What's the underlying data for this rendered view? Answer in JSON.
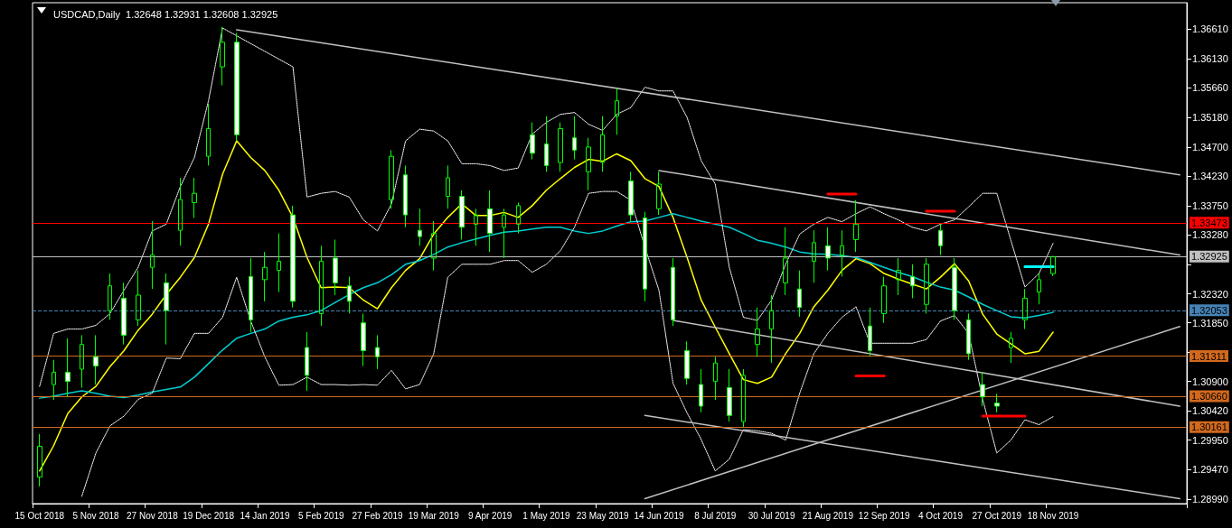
{
  "chart_data": {
    "type": "candlestick",
    "title": "USDCAD,Daily  1.32648 1.32931 1.32608 1.32925",
    "color": "#00ff00",
    "categories": [
      "15 Oct 2018",
      null,
      null,
      null,
      "5 Nov 2018",
      null,
      null,
      null,
      "27 Nov 2018",
      null,
      null,
      null,
      "19 Dec 2018",
      null,
      null,
      null,
      "14 Jan 2019",
      null,
      null,
      null,
      "5 Feb 2019",
      null,
      null,
      null,
      "27 Feb 2019",
      null,
      null,
      null,
      "19 Mar 2019",
      null,
      null,
      null,
      "9 Apr 2019",
      null,
      null,
      null,
      "1 May 2019",
      null,
      null,
      null,
      "23 May 2019",
      null,
      null,
      null,
      "14 Jun 2019",
      null,
      null,
      null,
      "8 Jul 2019",
      null,
      null,
      null,
      "30 Jul 2019",
      null,
      null,
      null,
      "21 Aug 2019",
      null,
      null,
      null,
      "12 Sep 2019",
      null,
      null,
      null,
      "4 Oct 2019",
      null,
      null,
      null,
      "27 Oct 2019",
      null,
      null,
      null,
      "18 Nov 2019",
      null,
      null,
      null,
      null,
      null,
      null,
      null,
      null,
      null
    ],
    "ohlc": [
      [
        1.2935,
        1.3005,
        1.292,
        1.2985
      ],
      [
        1.3085,
        1.3125,
        1.306,
        1.3105
      ],
      [
        1.3105,
        1.316,
        1.3065,
        1.309
      ],
      [
        1.311,
        1.3165,
        1.308,
        1.315
      ],
      [
        1.313,
        1.3165,
        1.3085,
        1.3115
      ],
      [
        1.3205,
        1.3265,
        1.319,
        1.3245
      ],
      [
        1.3225,
        1.325,
        1.315,
        1.3165
      ],
      [
        1.319,
        1.327,
        1.318,
        1.323
      ],
      [
        1.3275,
        1.335,
        1.324,
        1.3295
      ],
      [
        1.325,
        1.3265,
        1.315,
        1.3205
      ],
      [
        1.3335,
        1.342,
        1.331,
        1.3385
      ],
      [
        1.338,
        1.342,
        1.3355,
        1.3395
      ],
      [
        1.3455,
        1.354,
        1.344,
        1.35
      ],
      [
        1.36,
        1.3665,
        1.357,
        1.364
      ],
      [
        1.364,
        1.3655,
        1.348,
        1.349
      ],
      [
        1.326,
        1.329,
        1.317,
        1.319
      ],
      [
        1.3255,
        1.33,
        1.322,
        1.3275
      ],
      [
        1.327,
        1.333,
        1.3235,
        1.3285
      ],
      [
        1.336,
        1.3375,
        1.321,
        1.322
      ],
      [
        1.3145,
        1.317,
        1.3075,
        1.31
      ],
      [
        1.32,
        1.331,
        1.318,
        1.3285
      ],
      [
        1.329,
        1.332,
        1.323,
        1.325
      ],
      [
        1.3245,
        1.326,
        1.32,
        1.322
      ],
      [
        1.3185,
        1.32,
        1.3115,
        1.314
      ],
      [
        1.3145,
        1.3165,
        1.311,
        1.313
      ],
      [
        1.3385,
        1.3465,
        1.337,
        1.3455
      ],
      [
        1.3425,
        1.344,
        1.334,
        1.336
      ],
      [
        1.3335,
        1.337,
        1.331,
        1.3325
      ],
      [
        1.329,
        1.335,
        1.327,
        1.333
      ],
      [
        1.339,
        1.344,
        1.337,
        1.342
      ],
      [
        1.339,
        1.34,
        1.332,
        1.334
      ],
      [
        1.3345,
        1.337,
        1.331,
        1.336
      ],
      [
        1.337,
        1.34,
        1.33,
        1.333
      ],
      [
        1.334,
        1.337,
        1.329,
        1.336
      ],
      [
        1.3345,
        1.338,
        1.333,
        1.3375
      ],
      [
        1.349,
        1.351,
        1.345,
        1.346
      ],
      [
        1.3475,
        1.352,
        1.343,
        1.344
      ],
      [
        1.3445,
        1.351,
        1.343,
        1.35
      ],
      [
        1.3485,
        1.352,
        1.345,
        1.3465
      ],
      [
        1.343,
        1.3485,
        1.34,
        1.347
      ],
      [
        1.3445,
        1.352,
        1.343,
        1.349
      ],
      [
        1.352,
        1.3565,
        1.349,
        1.3545
      ],
      [
        1.3415,
        1.343,
        1.335,
        1.336
      ],
      [
        1.3355,
        1.3365,
        1.322,
        1.324
      ],
      [
        1.337,
        1.343,
        1.336,
        1.341
      ],
      [
        1.3275,
        1.329,
        1.318,
        1.319
      ],
      [
        1.314,
        1.3155,
        1.3085,
        1.3095
      ],
      [
        1.3085,
        1.311,
        1.304,
        1.305
      ],
      [
        1.309,
        1.313,
        1.306,
        1.312
      ],
      [
        1.308,
        1.311,
        1.3025,
        1.3035
      ],
      [
        1.3025,
        1.311,
        1.3016,
        1.31
      ],
      [
        1.315,
        1.321,
        1.313,
        1.3175
      ],
      [
        1.3175,
        1.323,
        1.312,
        1.3205
      ],
      [
        1.325,
        1.334,
        1.323,
        1.329
      ],
      [
        1.324,
        1.327,
        1.3195,
        1.321
      ],
      [
        1.3285,
        1.3335,
        1.325,
        1.3315
      ],
      [
        1.331,
        1.334,
        1.327,
        1.329
      ],
      [
        1.3295,
        1.3335,
        1.326,
        1.331
      ],
      [
        1.332,
        1.3384,
        1.33,
        1.3345
      ],
      [
        1.318,
        1.321,
        1.313,
        1.314
      ],
      [
        1.32,
        1.326,
        1.3185,
        1.3245
      ],
      [
        1.3255,
        1.329,
        1.323,
        1.327
      ],
      [
        1.326,
        1.328,
        1.3225,
        1.3245
      ],
      [
        1.3215,
        1.329,
        1.32,
        1.328
      ],
      [
        1.3335,
        1.3345,
        1.3295,
        1.331
      ],
      [
        1.3275,
        1.329,
        1.319,
        1.3205
      ],
      [
        1.319,
        1.32,
        1.3125,
        1.3135
      ],
      [
        1.3085,
        1.3105,
        1.305,
        1.3065
      ],
      [
        1.3055,
        1.307,
        1.304,
        1.305
      ],
      [
        1.3145,
        1.317,
        1.312,
        1.316
      ],
      [
        1.319,
        1.324,
        1.3175,
        1.3225
      ],
      [
        1.3235,
        1.3265,
        1.3215,
        1.3255
      ],
      [
        1.32648,
        1.32931,
        1.32608,
        1.32925
      ],
      null,
      null,
      null,
      null,
      null,
      null,
      null,
      null,
      null
    ],
    "series": [
      {
        "type": "line",
        "color": "#ffff00",
        "values": [
          1.2945,
          1.2986,
          1.3038,
          1.3065,
          1.3082,
          1.3114,
          1.314,
          1.3173,
          1.3199,
          1.3231,
          1.3259,
          1.3291,
          1.3345,
          1.3426,
          1.348,
          1.3453,
          1.3432,
          1.34,
          1.3356,
          1.3291,
          1.3242,
          1.3243,
          1.3242,
          1.3222,
          1.3208,
          1.3242,
          1.327,
          1.3289,
          1.3329,
          1.3356,
          1.3378,
          1.3359,
          1.3359,
          1.3364,
          1.3356,
          1.3375,
          1.34,
          1.3419,
          1.3437,
          1.345,
          1.3447,
          1.3459,
          1.3448,
          1.3419,
          1.3406,
          1.3356,
          1.3291,
          1.3222,
          1.3178,
          1.3135,
          1.3093,
          1.3087,
          1.3097,
          1.3135,
          1.3168,
          1.3211,
          1.3238,
          1.327,
          1.3289,
          1.3281,
          1.3265,
          1.3256,
          1.3248,
          1.324,
          1.3259,
          1.3281,
          1.3253,
          1.3199,
          1.3167,
          1.3151,
          1.3135,
          1.3139,
          1.317,
          null,
          null,
          null,
          null,
          null,
          null,
          null,
          null,
          null
        ]
      },
      {
        "type": "line",
        "color": "#00ced1",
        "values": [
          1.3063,
          1.3066,
          1.3071,
          1.3075,
          1.3071,
          1.3066,
          1.3064,
          1.3068,
          1.3073,
          1.3077,
          1.3081,
          1.3097,
          1.3119,
          1.3141,
          1.316,
          1.3168,
          1.3175,
          1.3188,
          1.3194,
          1.3198,
          1.3205,
          1.3218,
          1.3231,
          1.3242,
          1.325,
          1.3263,
          1.328,
          1.3286,
          1.3296,
          1.3308,
          1.3315,
          1.3321,
          1.3327,
          1.3332,
          1.3334,
          1.3337,
          1.334,
          1.334,
          1.3334,
          1.333,
          1.3334,
          1.3342,
          1.3349,
          1.335,
          1.3356,
          1.3362,
          1.3356,
          1.335,
          1.3345,
          1.334,
          1.333,
          1.3319,
          1.3314,
          1.3308,
          1.33,
          1.3297,
          1.3296,
          1.3294,
          1.3291,
          1.3283,
          1.3275,
          1.3267,
          1.326,
          1.3251,
          1.3243,
          1.3238,
          1.3227,
          1.3215,
          1.3205,
          1.3195,
          1.3193,
          1.3197,
          1.3202,
          null,
          null,
          null,
          null,
          null,
          null,
          null,
          null,
          null
        ]
      },
      {
        "type": "line",
        "color": "#ffffff",
        "line_style": "dotted",
        "values": [
          1.3082,
          1.3168,
          1.3175,
          1.3175,
          1.3181,
          1.32,
          1.3238,
          1.3275,
          1.3334,
          1.3345,
          1.3406,
          1.3453,
          1.3545,
          1.3663,
          null,
          null,
          null,
          null,
          1.36,
          1.3389,
          1.3395,
          1.3398,
          1.3389,
          1.3352,
          1.3334,
          1.3378,
          1.348,
          1.3499,
          1.3496,
          1.348,
          1.3443,
          1.3443,
          1.344,
          1.3432,
          1.3436,
          1.3491,
          1.351,
          1.3523,
          1.3526,
          1.3507,
          1.3497,
          1.3523,
          1.3534,
          1.3567,
          1.3561,
          1.3561,
          1.3518,
          1.3448,
          1.341,
          1.3275,
          1.3194,
          1.3189,
          1.3222,
          1.328,
          1.3329,
          1.3345,
          1.3356,
          1.3349,
          1.3362,
          1.3373,
          1.3362,
          1.3352,
          1.334,
          1.3334,
          1.3345,
          1.3352,
          1.3373,
          1.3395,
          1.3395,
          1.3319,
          1.3243,
          1.3265,
          1.3314,
          null,
          null,
          null,
          null,
          null,
          null,
          null,
          null,
          null
        ]
      },
      {
        "type": "line",
        "color": "#ffffff",
        "line_style": "dotted",
        "values": [
          null,
          null,
          null,
          1.2904,
          1.2974,
          1.3018,
          1.3034,
          1.3061,
          1.3071,
          1.3128,
          1.3127,
          1.3168,
          1.3168,
          1.3194,
          1.3259,
          1.3188,
          1.313,
          1.3084,
          1.3085,
          1.3097,
          1.3085,
          1.3085,
          1.3084,
          1.3085,
          1.3084,
          1.3108,
          1.3078,
          1.3085,
          1.3135,
          1.3259,
          1.328,
          1.328,
          1.328,
          1.3286,
          1.3286,
          1.3267,
          1.328,
          1.3302,
          1.334,
          1.3395,
          1.3398,
          1.3398,
          1.3384,
          1.3308,
          1.3238,
          1.3087,
          1.3039,
          1.2996,
          1.2945,
          1.2964,
          1.3012,
          1.301,
          1.3006,
          1.2995,
          1.3071,
          1.3135,
          1.3168,
          1.3194,
          1.3211,
          1.3152,
          1.3152,
          1.3152,
          1.3152,
          1.3158,
          1.3188,
          1.3197,
          1.3168,
          1.3061,
          1.2974,
          1.2995,
          1.3028,
          1.302,
          1.3033,
          null,
          null,
          null,
          null,
          null,
          null,
          null,
          null,
          null
        ]
      },
      {
        "type": "line",
        "color": "#c0c0c0",
        "values": [
          null,
          null,
          null,
          null,
          null,
          null,
          null,
          null,
          null,
          null,
          null,
          null,
          null,
          null,
          1.366,
          null,
          null,
          null,
          null,
          null,
          null,
          null,
          null,
          null,
          null,
          null,
          null,
          null,
          null,
          null,
          null,
          null,
          null,
          null,
          null,
          null,
          null,
          null,
          null,
          null,
          null,
          null,
          null,
          null,
          null,
          null,
          null,
          null,
          null,
          null,
          null,
          null,
          null,
          null,
          null,
          null,
          null,
          null,
          null,
          null,
          null,
          null,
          null,
          null,
          null,
          null,
          null,
          null,
          null,
          null,
          null,
          null,
          null,
          null,
          null,
          null,
          null,
          null,
          null,
          null,
          null,
          1.3425
        ]
      },
      {
        "type": "line",
        "color": "#c0c0c0",
        "values": [
          null,
          null,
          null,
          null,
          null,
          null,
          null,
          null,
          null,
          null,
          null,
          null,
          null,
          null,
          null,
          null,
          null,
          null,
          null,
          null,
          null,
          null,
          null,
          null,
          null,
          null,
          null,
          null,
          null,
          null,
          null,
          null,
          null,
          null,
          null,
          null,
          null,
          null,
          null,
          null,
          null,
          null,
          null,
          null,
          1.3432,
          null,
          null,
          null,
          null,
          null,
          null,
          null,
          null,
          null,
          null,
          null,
          null,
          null,
          null,
          null,
          null,
          null,
          null,
          null,
          null,
          null,
          null,
          null,
          null,
          null,
          null,
          null,
          null,
          null,
          null,
          null,
          null,
          null,
          null,
          null,
          null,
          1.3295
        ]
      },
      {
        "type": "line",
        "color": "#c0c0c0",
        "values": [
          null,
          null,
          null,
          null,
          null,
          null,
          null,
          null,
          null,
          null,
          null,
          null,
          null,
          null,
          null,
          null,
          null,
          null,
          null,
          null,
          null,
          null,
          null,
          null,
          null,
          null,
          null,
          null,
          null,
          null,
          null,
          null,
          null,
          null,
          null,
          null,
          null,
          null,
          null,
          null,
          null,
          null,
          null,
          null,
          null,
          1.3189,
          null,
          null,
          null,
          null,
          null,
          null,
          null,
          null,
          null,
          null,
          null,
          null,
          null,
          null,
          null,
          null,
          null,
          null,
          null,
          null,
          null,
          null,
          null,
          null,
          null,
          null,
          null,
          null,
          null,
          null,
          null,
          null,
          null,
          null,
          null,
          1.305
        ]
      },
      {
        "type": "line",
        "color": "#c0c0c0",
        "values": [
          null,
          null,
          null,
          null,
          null,
          null,
          null,
          null,
          null,
          null,
          null,
          null,
          null,
          null,
          null,
          null,
          null,
          null,
          null,
          null,
          null,
          null,
          null,
          null,
          null,
          null,
          null,
          null,
          null,
          null,
          null,
          null,
          null,
          null,
          null,
          null,
          null,
          null,
          null,
          null,
          null,
          null,
          null,
          1.3035,
          null,
          null,
          null,
          null,
          null,
          null,
          null,
          null,
          null,
          null,
          null,
          null,
          null,
          null,
          null,
          null,
          null,
          null,
          null,
          null,
          null,
          null,
          null,
          null,
          null,
          null,
          null,
          null,
          null,
          null,
          null,
          null,
          null,
          null,
          null,
          null,
          null,
          1.29
        ]
      },
      {
        "type": "line",
        "color": "#c0c0c0",
        "values": [
          null,
          null,
          null,
          null,
          null,
          null,
          null,
          null,
          null,
          null,
          null,
          null,
          null,
          null,
          null,
          null,
          null,
          null,
          null,
          null,
          null,
          null,
          null,
          null,
          null,
          null,
          null,
          null,
          null,
          null,
          null,
          null,
          null,
          null,
          null,
          null,
          null,
          null,
          null,
          null,
          null,
          null,
          null,
          1.29,
          null,
          null,
          null,
          null,
          null,
          null,
          null,
          null,
          null,
          null,
          null,
          null,
          null,
          null,
          null,
          null,
          null,
          null,
          null,
          null,
          null,
          null,
          null,
          null,
          null,
          null,
          null,
          null,
          null,
          null,
          null,
          null,
          null,
          null,
          null,
          null,
          null,
          1.3179
        ]
      },
      {
        "type": "line",
        "color": "#ff0000",
        "values": [
          null,
          null,
          null,
          null,
          null,
          null,
          null,
          null,
          null,
          null,
          null,
          null,
          null,
          null,
          null,
          null,
          null,
          null,
          null,
          null,
          null,
          null,
          null,
          null,
          null,
          null,
          null,
          null,
          null,
          null,
          null,
          null,
          null,
          null,
          null,
          null,
          null,
          null,
          null,
          null,
          null,
          null,
          null,
          null,
          null,
          null,
          null,
          null,
          null,
          null,
          null,
          null,
          null,
          null,
          null,
          null,
          1.3394,
          null,
          1.3394,
          null,
          null,
          null,
          null,
          null,
          null,
          null,
          null,
          null,
          null,
          null,
          null,
          null,
          null,
          null,
          null,
          null,
          null,
          null,
          null,
          null,
          null,
          null
        ]
      },
      {
        "type": "line",
        "color": "#ff0000",
        "values": [
          null,
          null,
          null,
          null,
          null,
          null,
          null,
          null,
          null,
          null,
          null,
          null,
          null,
          null,
          null,
          null,
          null,
          null,
          null,
          null,
          null,
          null,
          null,
          null,
          null,
          null,
          null,
          null,
          null,
          null,
          null,
          null,
          null,
          null,
          null,
          null,
          null,
          null,
          null,
          null,
          null,
          null,
          null,
          null,
          null,
          null,
          null,
          null,
          null,
          null,
          null,
          null,
          null,
          null,
          null,
          null,
          null,
          null,
          null,
          null,
          null,
          null,
          null,
          1.3366,
          null,
          1.3366,
          null,
          null,
          null,
          null,
          null,
          null,
          null,
          null,
          null,
          null,
          null,
          null,
          null,
          null,
          null,
          null
        ]
      },
      {
        "type": "line",
        "color": "#ff0000",
        "values": [
          null,
          null,
          null,
          null,
          null,
          null,
          null,
          null,
          null,
          null,
          null,
          null,
          null,
          null,
          null,
          null,
          null,
          null,
          null,
          null,
          null,
          null,
          null,
          null,
          null,
          null,
          null,
          null,
          null,
          null,
          null,
          null,
          null,
          null,
          null,
          null,
          null,
          null,
          null,
          null,
          null,
          null,
          null,
          null,
          null,
          null,
          null,
          null,
          null,
          null,
          null,
          null,
          null,
          null,
          null,
          null,
          null,
          null,
          1.3099,
          null,
          1.3099,
          null,
          null,
          null,
          null,
          null,
          null,
          null,
          null,
          null,
          null,
          null,
          null,
          null,
          null,
          null,
          null,
          null,
          null,
          null,
          null,
          null
        ]
      },
      {
        "type": "line",
        "color": "#ff0000",
        "values": [
          null,
          null,
          null,
          null,
          null,
          null,
          null,
          null,
          null,
          null,
          null,
          null,
          null,
          null,
          null,
          null,
          null,
          null,
          null,
          null,
          null,
          null,
          null,
          null,
          null,
          null,
          null,
          null,
          null,
          null,
          null,
          null,
          null,
          null,
          null,
          null,
          null,
          null,
          null,
          null,
          null,
          null,
          null,
          null,
          null,
          null,
          null,
          null,
          null,
          null,
          null,
          null,
          null,
          null,
          null,
          null,
          null,
          null,
          null,
          null,
          null,
          null,
          null,
          null,
          null,
          null,
          null,
          1.3034,
          null,
          null,
          1.3034,
          null,
          null,
          null,
          null,
          null,
          null,
          null,
          null,
          null,
          null,
          null
        ]
      },
      {
        "type": "line",
        "color": "#00ffff",
        "values": [
          null,
          null,
          null,
          null,
          null,
          null,
          null,
          null,
          null,
          null,
          null,
          null,
          null,
          null,
          null,
          null,
          null,
          null,
          null,
          null,
          null,
          null,
          null,
          null,
          null,
          null,
          null,
          null,
          null,
          null,
          null,
          null,
          null,
          null,
          null,
          null,
          null,
          null,
          null,
          null,
          null,
          null,
          null,
          null,
          null,
          null,
          null,
          null,
          null,
          null,
          null,
          null,
          null,
          null,
          null,
          null,
          null,
          null,
          null,
          null,
          null,
          null,
          null,
          null,
          null,
          null,
          null,
          null,
          null,
          null,
          1.3276,
          null,
          1.3276,
          null,
          null,
          null,
          null,
          null,
          null,
          null,
          null,
          null
        ]
      }
    ],
    "ylim": [
      1.2892,
      1.3704
    ],
    "yticks": [
      {
        "value": 1.2899,
        "label": "1.28990"
      },
      {
        "value": 1.2947,
        "label": "1.29470"
      },
      {
        "value": 1.2995,
        "label": "1.29950"
      },
      {
        "value": 1.3042,
        "label": "1.30420"
      },
      {
        "value": 1.309,
        "label": "1.30900"
      },
      {
        "value": 1.3137,
        "label": null
      },
      {
        "value": 1.3185,
        "label": "1.31850"
      },
      {
        "value": 1.3232,
        "label": "1.32320"
      },
      {
        "value": 1.328,
        "label": null
      },
      {
        "value": 1.3328,
        "label": "1.33280"
      },
      {
        "value": 1.3375,
        "label": "1.33750"
      },
      {
        "value": 1.3423,
        "label": "1.34230"
      },
      {
        "value": 1.347,
        "label": "1.34700"
      },
      {
        "value": 1.3518,
        "label": "1.35180"
      },
      {
        "value": 1.3566,
        "label": "1.35660"
      },
      {
        "value": 1.3613,
        "label": "1.36130"
      },
      {
        "value": 1.3661,
        "label": "1.36610"
      }
    ],
    "ref_lines": [
      {
        "axis": "y",
        "value": 1.33473,
        "label": "1.33473",
        "color": "#ff0000"
      },
      {
        "axis": "y",
        "value": 1.32925,
        "label": "1.32925",
        "color": "#c0c0c0"
      },
      {
        "axis": "y",
        "value": 1.32053,
        "label": "1.32053",
        "color": "#4682b4",
        "line_style": "dashed"
      },
      {
        "axis": "y",
        "value": 1.31311,
        "label": "1.31311",
        "color": "#d2691e"
      },
      {
        "axis": "y",
        "value": 1.3066,
        "label": "1.30660",
        "color": "#d2691e"
      },
      {
        "axis": "y",
        "value": 1.30161,
        "label": "1.30161",
        "color": "#d2691e"
      }
    ]
  }
}
